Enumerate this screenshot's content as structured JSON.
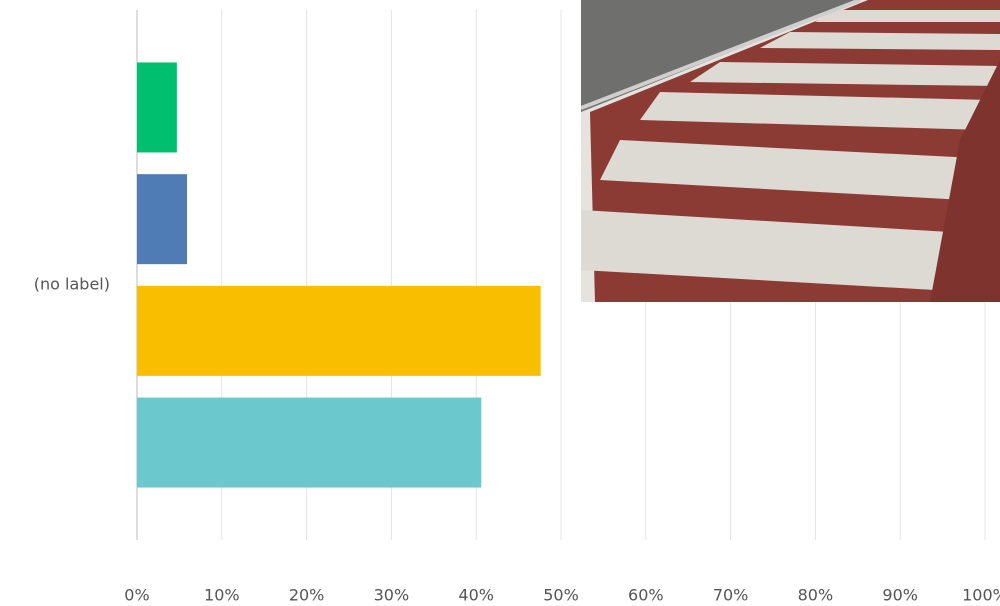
{
  "chart_data": {
    "type": "bar",
    "orientation": "horizontal",
    "categories": [
      "(no label)"
    ],
    "series": [
      {
        "color": "#00bf6f",
        "values": [
          4.7
        ]
      },
      {
        "color": "#507cb6",
        "values": [
          5.9
        ]
      },
      {
        "color": "#f9be00",
        "values": [
          47.6
        ]
      },
      {
        "color": "#6bc8cd",
        "values": [
          40.6
        ]
      }
    ],
    "xlim": [
      0,
      100
    ],
    "xticks": [
      {
        "value": 0,
        "label": "0%"
      },
      {
        "value": 10,
        "label": "10%"
      },
      {
        "value": 20,
        "label": "20%"
      },
      {
        "value": 30,
        "label": "30%"
      },
      {
        "value": 40,
        "label": "40%"
      },
      {
        "value": 50,
        "label": "50%"
      },
      {
        "value": 60,
        "label": "60%"
      },
      {
        "value": 70,
        "label": "70%"
      },
      {
        "value": 80,
        "label": "80%"
      },
      {
        "value": 90,
        "label": "90%"
      },
      {
        "value": 100,
        "label": "100%"
      }
    ],
    "grid": true
  }
}
